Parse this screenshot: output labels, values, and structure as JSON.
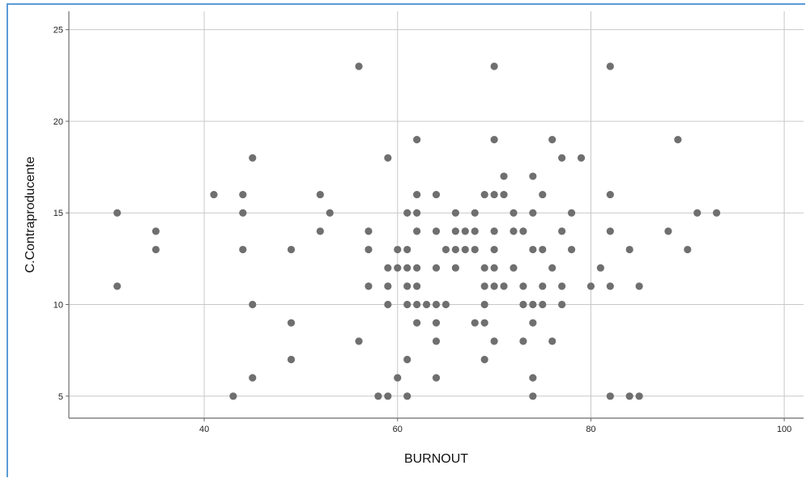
{
  "chart_data": {
    "type": "scatter",
    "title": "",
    "xlabel": "BURNOUT",
    "ylabel": "C.Contraproducente",
    "xlim": [
      26,
      102
    ],
    "ylim": [
      3.8,
      26
    ],
    "xticks": [
      40,
      60,
      80,
      100
    ],
    "yticks": [
      5,
      10,
      15,
      20,
      25
    ],
    "grid": true,
    "point_color": "#6f6f6f",
    "points": [
      [
        31,
        15
      ],
      [
        31,
        11
      ],
      [
        35,
        14
      ],
      [
        35,
        13
      ],
      [
        41,
        16
      ],
      [
        43,
        5
      ],
      [
        44,
        16
      ],
      [
        44,
        15
      ],
      [
        44,
        13
      ],
      [
        45,
        18
      ],
      [
        45,
        10
      ],
      [
        45,
        6
      ],
      [
        49,
        13
      ],
      [
        49,
        9
      ],
      [
        49,
        7
      ],
      [
        52,
        16
      ],
      [
        52,
        14
      ],
      [
        53,
        15
      ],
      [
        56,
        23
      ],
      [
        56,
        8
      ],
      [
        57,
        14
      ],
      [
        57,
        13
      ],
      [
        57,
        11
      ],
      [
        58,
        5
      ],
      [
        59,
        18
      ],
      [
        59,
        12
      ],
      [
        59,
        11
      ],
      [
        59,
        10
      ],
      [
        59,
        5
      ],
      [
        60,
        13
      ],
      [
        60,
        12
      ],
      [
        60,
        6
      ],
      [
        61,
        15
      ],
      [
        61,
        13
      ],
      [
        61,
        12
      ],
      [
        61,
        11
      ],
      [
        61,
        10
      ],
      [
        61,
        7
      ],
      [
        61,
        5
      ],
      [
        62,
        19
      ],
      [
        62,
        16
      ],
      [
        62,
        15
      ],
      [
        62,
        14
      ],
      [
        62,
        12
      ],
      [
        62,
        11
      ],
      [
        62,
        10
      ],
      [
        62,
        9
      ],
      [
        63,
        10
      ],
      [
        64,
        16
      ],
      [
        64,
        14
      ],
      [
        64,
        12
      ],
      [
        64,
        10
      ],
      [
        64,
        9
      ],
      [
        64,
        8
      ],
      [
        64,
        6
      ],
      [
        65,
        13
      ],
      [
        65,
        10
      ],
      [
        66,
        15
      ],
      [
        66,
        14
      ],
      [
        66,
        13
      ],
      [
        66,
        12
      ],
      [
        67,
        14
      ],
      [
        67,
        13
      ],
      [
        68,
        15
      ],
      [
        68,
        14
      ],
      [
        68,
        13
      ],
      [
        68,
        9
      ],
      [
        69,
        16
      ],
      [
        69,
        12
      ],
      [
        69,
        11
      ],
      [
        69,
        10
      ],
      [
        69,
        9
      ],
      [
        69,
        7
      ],
      [
        70,
        23
      ],
      [
        70,
        19
      ],
      [
        70,
        16
      ],
      [
        70,
        14
      ],
      [
        70,
        13
      ],
      [
        70,
        12
      ],
      [
        70,
        11
      ],
      [
        70,
        8
      ],
      [
        71,
        17
      ],
      [
        71,
        16
      ],
      [
        71,
        11
      ],
      [
        72,
        15
      ],
      [
        72,
        14
      ],
      [
        72,
        12
      ],
      [
        73,
        14
      ],
      [
        73,
        11
      ],
      [
        73,
        10
      ],
      [
        73,
        8
      ],
      [
        74,
        17
      ],
      [
        74,
        15
      ],
      [
        74,
        13
      ],
      [
        74,
        10
      ],
      [
        74,
        9
      ],
      [
        74,
        6
      ],
      [
        74,
        5
      ],
      [
        75,
        16
      ],
      [
        75,
        13
      ],
      [
        75,
        11
      ],
      [
        75,
        10
      ],
      [
        76,
        19
      ],
      [
        76,
        12
      ],
      [
        76,
        8
      ],
      [
        77,
        18
      ],
      [
        77,
        14
      ],
      [
        77,
        11
      ],
      [
        77,
        10
      ],
      [
        78,
        15
      ],
      [
        78,
        13
      ],
      [
        79,
        18
      ],
      [
        80,
        11
      ],
      [
        81,
        12
      ],
      [
        82,
        23
      ],
      [
        82,
        16
      ],
      [
        82,
        14
      ],
      [
        82,
        11
      ],
      [
        82,
        5
      ],
      [
        84,
        13
      ],
      [
        84,
        5
      ],
      [
        85,
        11
      ],
      [
        85,
        5
      ],
      [
        88,
        14
      ],
      [
        89,
        19
      ],
      [
        90,
        13
      ],
      [
        91,
        15
      ],
      [
        93,
        15
      ]
    ]
  }
}
